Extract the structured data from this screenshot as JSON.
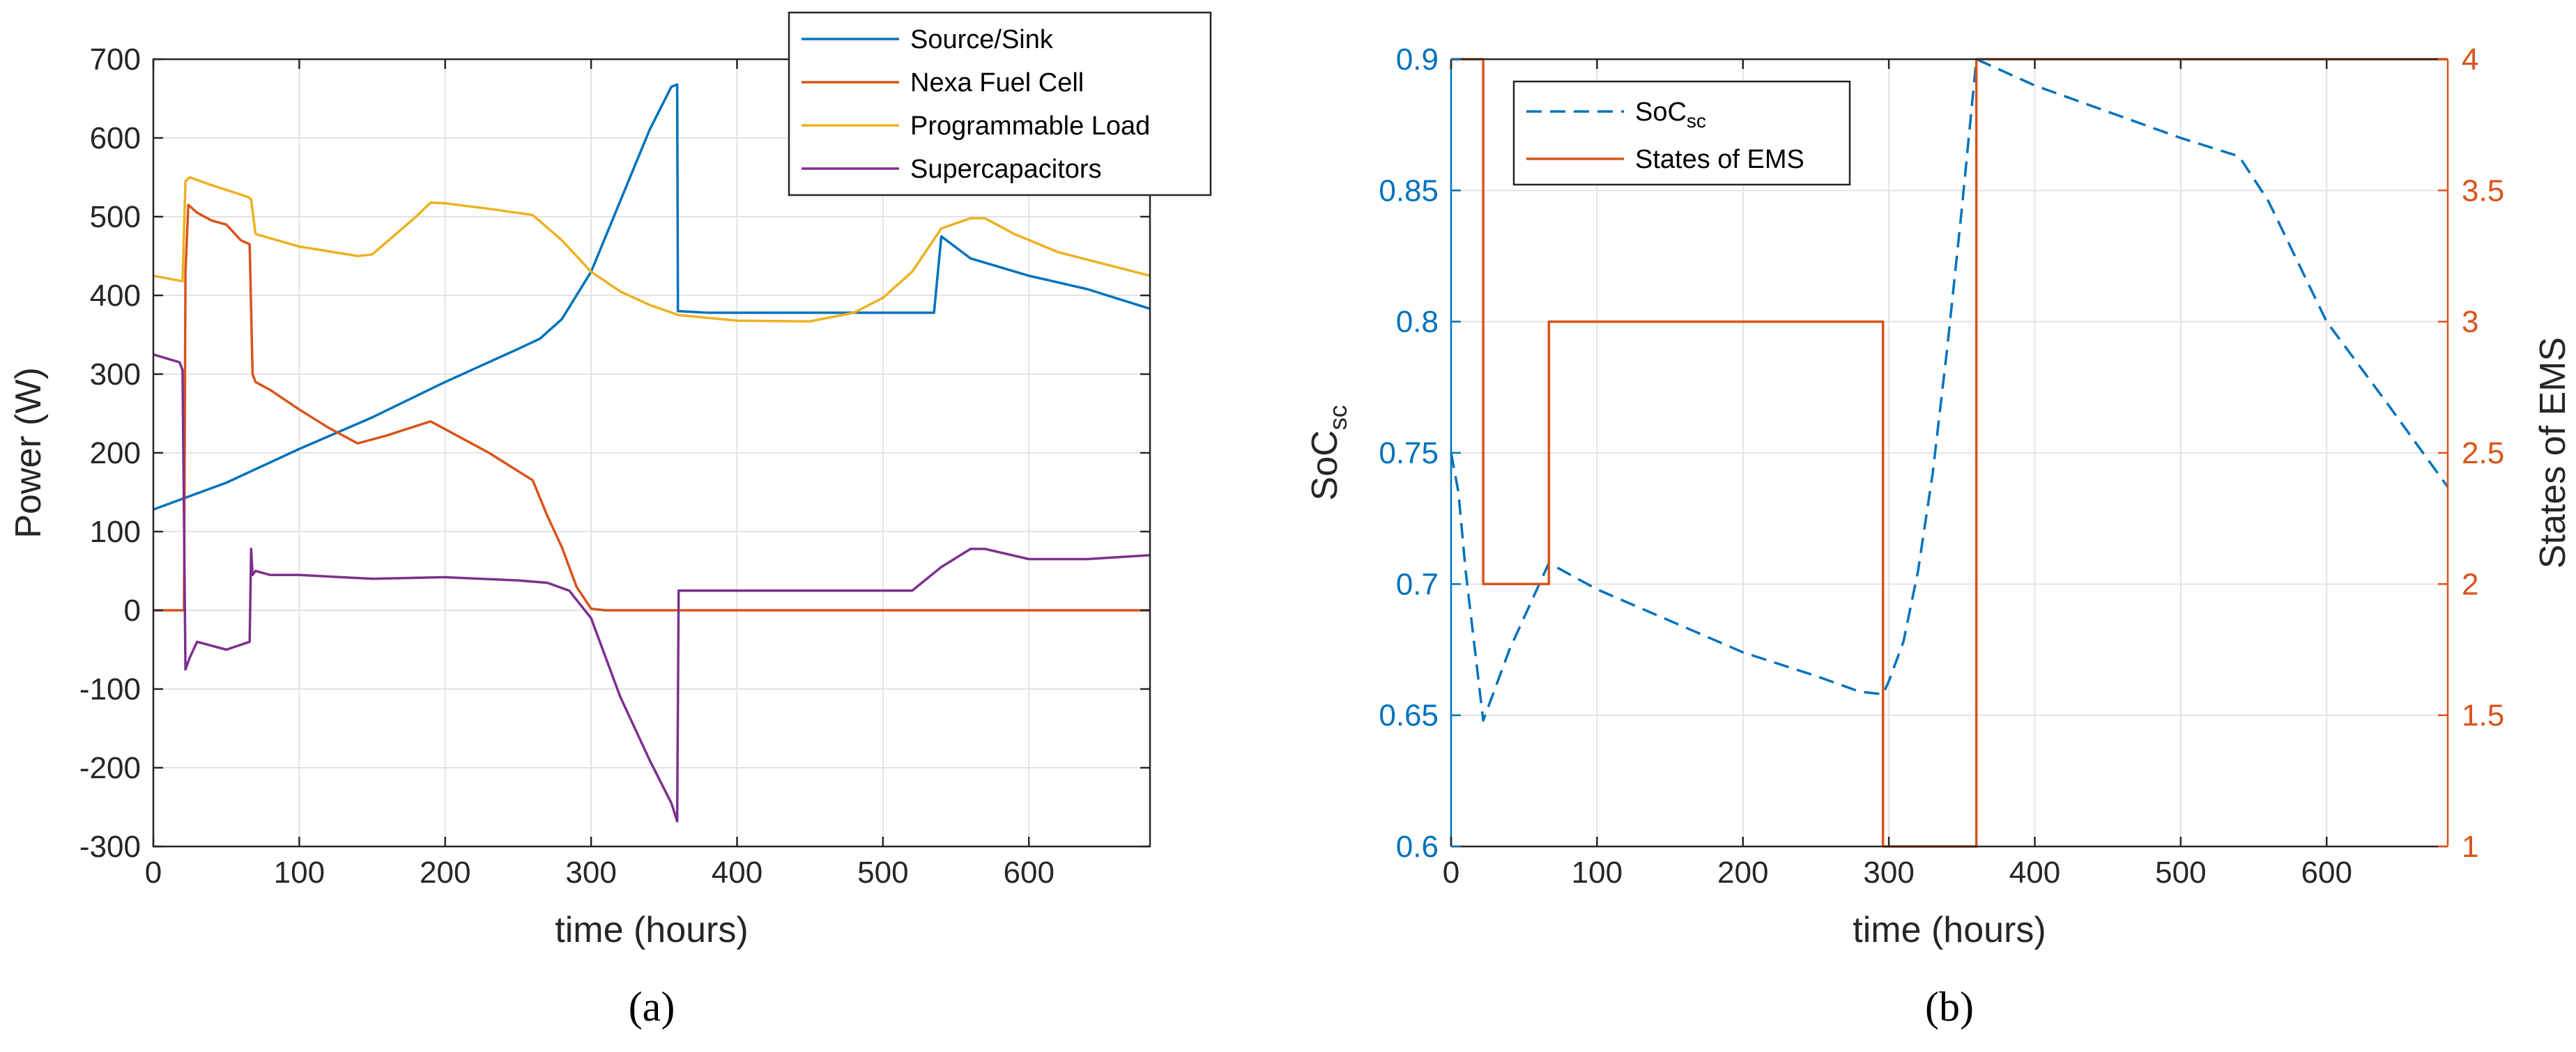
{
  "colors": {
    "blue": "#0072BD",
    "orange": "#D95319",
    "yellow": "#EDB120",
    "purple": "#7E2F8E"
  },
  "chart_data": [
    {
      "type": "line",
      "panel": "a",
      "caption": "(a)",
      "xlabel": "time (hours)",
      "ylabel": "Power (W)",
      "xlim": [
        0,
        683
      ],
      "ylim": [
        -300,
        700
      ],
      "xticks": [
        "0",
        "100",
        "200",
        "300",
        "400",
        "500",
        "600"
      ],
      "yticks": [
        "-300",
        "-200",
        "-100",
        "0",
        "100",
        "200",
        "300",
        "400",
        "500",
        "600",
        "700"
      ],
      "legend_position": "top-right",
      "series": [
        {
          "name": "Source/Sink",
          "color": "#0072BD",
          "x": [
            0,
            50,
            100,
            150,
            200,
            250,
            265,
            280,
            300,
            320,
            340,
            355,
            359,
            359.5,
            360,
            380,
            420,
            480,
            535,
            540,
            560,
            600,
            640,
            683
          ],
          "y": [
            128,
            162,
            205,
            245,
            290,
            332,
            345,
            370,
            430,
            520,
            610,
            665,
            668,
            380,
            380,
            378,
            378,
            378,
            378,
            475,
            447,
            425,
            408,
            383
          ]
        },
        {
          "name": "Nexa Fuel Cell",
          "color": "#D95319",
          "x": [
            0,
            21,
            22,
            24,
            30,
            40,
            50,
            60,
            66,
            68,
            70,
            80,
            100,
            120,
            140,
            160,
            190,
            200,
            230,
            260,
            270,
            280,
            290,
            300,
            310,
            400,
            500,
            600,
            683
          ],
          "y": [
            0,
            0,
            430,
            515,
            505,
            495,
            490,
            470,
            465,
            300,
            290,
            280,
            255,
            232,
            212,
            222,
            240,
            230,
            200,
            165,
            120,
            80,
            30,
            2,
            0,
            0,
            0,
            0,
            0
          ]
        },
        {
          "name": "Programmable Load",
          "color": "#EDB120",
          "x": [
            0,
            20,
            22,
            25,
            40,
            65,
            67,
            70,
            100,
            140,
            150,
            180,
            190,
            200,
            230,
            260,
            280,
            300,
            320,
            340,
            360,
            400,
            450,
            480,
            500,
            520,
            540,
            560,
            570,
            590,
            620,
            683
          ],
          "y": [
            425,
            418,
            545,
            550,
            540,
            525,
            522,
            478,
            462,
            450,
            452,
            500,
            518,
            517,
            510,
            502,
            470,
            430,
            405,
            388,
            375,
            368,
            367,
            378,
            397,
            430,
            485,
            498,
            498,
            478,
            455,
            425
          ]
        },
        {
          "name": "Supercapacitors",
          "color": "#7E2F8E",
          "x": [
            0,
            18,
            20,
            22,
            25,
            30,
            50,
            66,
            67,
            68,
            70,
            80,
            100,
            150,
            200,
            250,
            270,
            285,
            300,
            320,
            340,
            355,
            359,
            360,
            380,
            450,
            520,
            540,
            560,
            570,
            600,
            640,
            683
          ],
          "y": [
            325,
            315,
            305,
            -75,
            -60,
            -40,
            -50,
            -40,
            78,
            45,
            50,
            45,
            45,
            40,
            42,
            38,
            35,
            25,
            -10,
            -110,
            -190,
            -245,
            -268,
            25,
            25,
            25,
            25,
            55,
            78,
            78,
            65,
            65,
            70
          ]
        }
      ]
    },
    {
      "type": "line",
      "panel": "b",
      "caption": "(b)",
      "xlabel": "time (hours)",
      "ylabel_left": "SoC",
      "ylabel_left_sub": "sc",
      "ylabel_right": "States of EMS",
      "xlim": [
        0,
        683
      ],
      "ylim_left": [
        0.6,
        0.9
      ],
      "ylim_right": [
        1,
        4
      ],
      "xticks": [
        "0",
        "100",
        "200",
        "300",
        "400",
        "500",
        "600"
      ],
      "yticks_left": [
        "0.6",
        "0.65",
        "0.7",
        "0.75",
        "0.8",
        "0.85",
        "0.9"
      ],
      "yticks_right": [
        "1",
        "1.5",
        "2",
        "2.5",
        "3",
        "3.5",
        "4"
      ],
      "legend_position": "top-left",
      "series": [
        {
          "name": "SoC",
          "name_sub": "sc",
          "axis": "left",
          "style": "dashed",
          "color": "#0072BD",
          "x": [
            0,
            5,
            10,
            22,
            40,
            67,
            100,
            150,
            200,
            250,
            280,
            296,
            300,
            310,
            320,
            330,
            340,
            350,
            360,
            400,
            450,
            500,
            540,
            560,
            600,
            640,
            683
          ],
          "y": [
            0.75,
            0.735,
            0.705,
            0.648,
            0.675,
            0.708,
            0.698,
            0.686,
            0.674,
            0.665,
            0.659,
            0.658,
            0.663,
            0.678,
            0.705,
            0.742,
            0.79,
            0.843,
            0.9,
            0.89,
            0.88,
            0.87,
            0.863,
            0.846,
            0.8,
            0.77,
            0.737
          ]
        },
        {
          "name": "States of EMS",
          "axis": "right",
          "style": "solid",
          "color": "#D95319",
          "x": [
            0,
            22,
            22,
            67,
            67,
            296,
            296,
            360,
            360,
            683
          ],
          "y": [
            4,
            4,
            2,
            2,
            3,
            3,
            1,
            1,
            4,
            4
          ]
        }
      ]
    }
  ]
}
